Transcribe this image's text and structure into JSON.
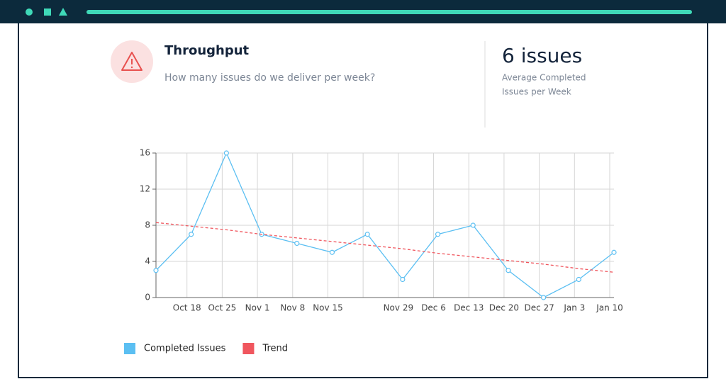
{
  "header": {
    "title": "Throughput",
    "subtitle": "How many issues do we deliver per week?",
    "stat_value": "6 issues",
    "stat_label": [
      "Average Completed",
      "Issues per Week"
    ]
  },
  "chart_data": {
    "type": "line",
    "categories": [
      null,
      "Oct 18",
      "Oct 25",
      "Nov 1",
      "Nov 8",
      "Nov 15",
      null,
      "Nov 29",
      "Dec 6",
      "Dec 13",
      "Dec 20",
      "Dec 27",
      "Jan 3",
      "Jan 10"
    ],
    "series": [
      {
        "name": "Completed Issues",
        "color": "#5bbff2",
        "values": [
          3,
          7,
          16,
          7,
          6,
          5,
          7,
          2,
          7,
          8,
          3,
          0,
          2,
          5
        ]
      },
      {
        "name": "Trend",
        "color": "#f0565e",
        "dashed": true,
        "values": [
          8.3,
          7.9,
          7.5,
          7.0,
          6.6,
          6.2,
          5.8,
          5.4,
          4.9,
          4.5,
          4.1,
          3.7,
          3.2,
          2.8
        ]
      }
    ],
    "ylim": [
      0,
      16
    ],
    "yticks": [
      0,
      4,
      8,
      12,
      16
    ],
    "grid": true,
    "legend": "bottom-left"
  }
}
